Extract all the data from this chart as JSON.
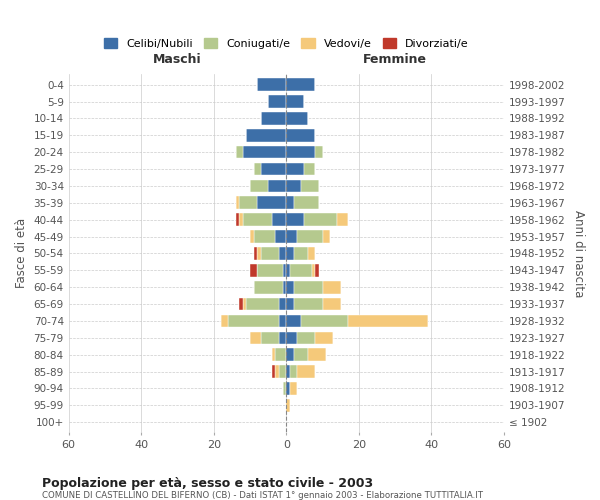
{
  "age_groups": [
    "100+",
    "95-99",
    "90-94",
    "85-89",
    "80-84",
    "75-79",
    "70-74",
    "65-69",
    "60-64",
    "55-59",
    "50-54",
    "45-49",
    "40-44",
    "35-39",
    "30-34",
    "25-29",
    "20-24",
    "15-19",
    "10-14",
    "5-9",
    "0-4"
  ],
  "birth_years": [
    "≤ 1902",
    "1903-1907",
    "1908-1912",
    "1913-1917",
    "1918-1922",
    "1923-1927",
    "1928-1932",
    "1933-1937",
    "1938-1942",
    "1943-1947",
    "1948-1952",
    "1953-1957",
    "1958-1962",
    "1963-1967",
    "1968-1972",
    "1973-1977",
    "1978-1982",
    "1983-1987",
    "1988-1992",
    "1993-1997",
    "1998-2002"
  ],
  "maschi_celibi": [
    0,
    0,
    0,
    0,
    0,
    2,
    2,
    2,
    1,
    1,
    2,
    3,
    4,
    8,
    5,
    7,
    12,
    11,
    7,
    5,
    8
  ],
  "maschi_coniugati": [
    0,
    0,
    1,
    2,
    3,
    5,
    14,
    9,
    8,
    7,
    5,
    6,
    8,
    5,
    5,
    2,
    2,
    0,
    0,
    0,
    0
  ],
  "maschi_vedovi": [
    0,
    0,
    0,
    1,
    1,
    3,
    2,
    1,
    0,
    0,
    1,
    1,
    1,
    1,
    0,
    0,
    0,
    0,
    0,
    0,
    0
  ],
  "maschi_divorziati": [
    0,
    0,
    0,
    1,
    0,
    0,
    0,
    1,
    0,
    2,
    1,
    0,
    1,
    0,
    0,
    0,
    0,
    0,
    0,
    0,
    0
  ],
  "femmine_celibi": [
    0,
    0,
    1,
    1,
    2,
    3,
    4,
    2,
    2,
    1,
    2,
    3,
    5,
    2,
    4,
    5,
    8,
    8,
    6,
    5,
    8
  ],
  "femmine_coniugati": [
    0,
    0,
    0,
    2,
    4,
    5,
    13,
    8,
    8,
    6,
    4,
    7,
    9,
    7,
    5,
    3,
    2,
    0,
    0,
    0,
    0
  ],
  "femmine_vedovi": [
    0,
    1,
    2,
    5,
    5,
    5,
    22,
    5,
    5,
    1,
    2,
    2,
    3,
    0,
    0,
    0,
    0,
    0,
    0,
    0,
    0
  ],
  "femmine_divorziati": [
    0,
    0,
    0,
    0,
    0,
    0,
    0,
    0,
    0,
    1,
    0,
    0,
    0,
    0,
    0,
    0,
    0,
    0,
    0,
    0,
    0
  ],
  "color_celibi": "#3d6fa8",
  "color_coniugati": "#b5c98e",
  "color_vedovi": "#f5c97a",
  "color_divorziati": "#c0392b",
  "title": "Popolazione per età, sesso e stato civile - 2003",
  "subtitle": "COMUNE DI CASTELLINO DEL BIFERNO (CB) - Dati ISTAT 1° gennaio 2003 - Elaborazione TUTTITALIA.IT",
  "xlabel_left": "Maschi",
  "xlabel_right": "Femmine",
  "ylabel_left": "Fasce di età",
  "ylabel_right": "Anni di nascita",
  "xlim": 60,
  "bg_color": "#ffffff",
  "grid_color": "#cccccc"
}
